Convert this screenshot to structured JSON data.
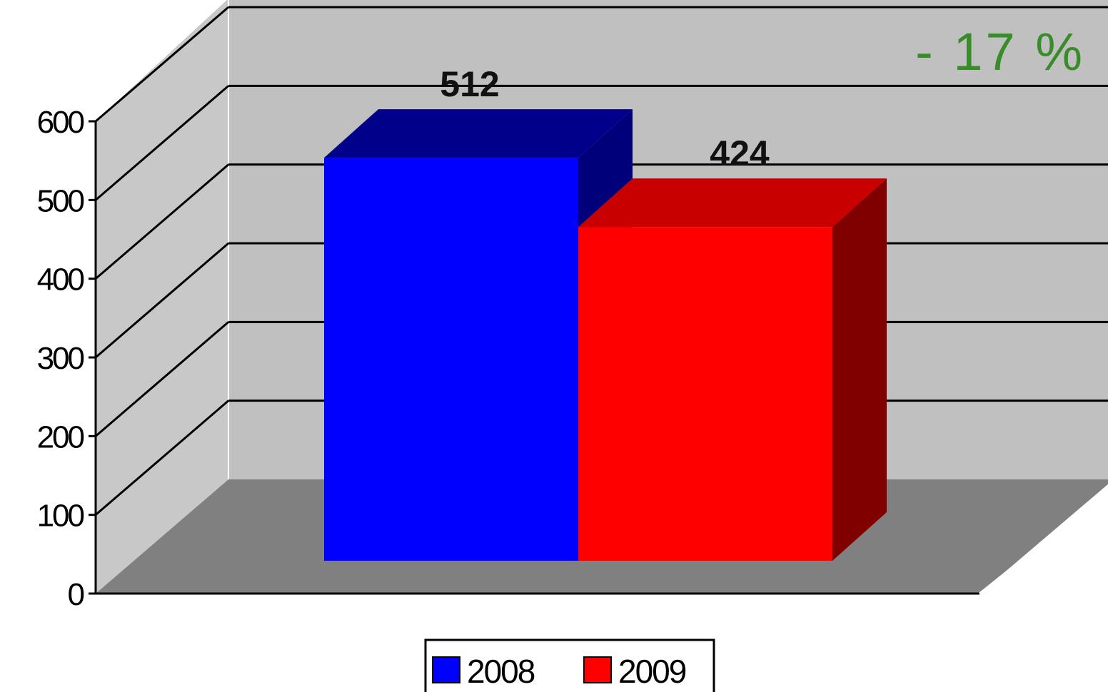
{
  "chart_data": {
    "type": "bar",
    "style": "3d-column",
    "title": "",
    "xlabel": "",
    "ylabel": "",
    "ylim": [
      0,
      600
    ],
    "yticks": [
      0,
      100,
      200,
      300,
      400,
      500,
      600
    ],
    "grid": true,
    "legend_position": "bottom",
    "series": [
      {
        "name": "2008",
        "value": 512,
        "label": "512",
        "color": "#0000ff",
        "top_color": "#00008b",
        "side_color": "#00007a"
      },
      {
        "name": "2009",
        "value": 424,
        "label": "424",
        "color": "#ff0000",
        "top_color": "#c80000",
        "side_color": "#800000"
      }
    ],
    "annotation": {
      "text": "- 17 %",
      "color": "#3a8c2a"
    },
    "colors": {
      "wall": "#c0c0c0",
      "side_wall": "#c8c8c8",
      "floor": "#808080"
    }
  }
}
